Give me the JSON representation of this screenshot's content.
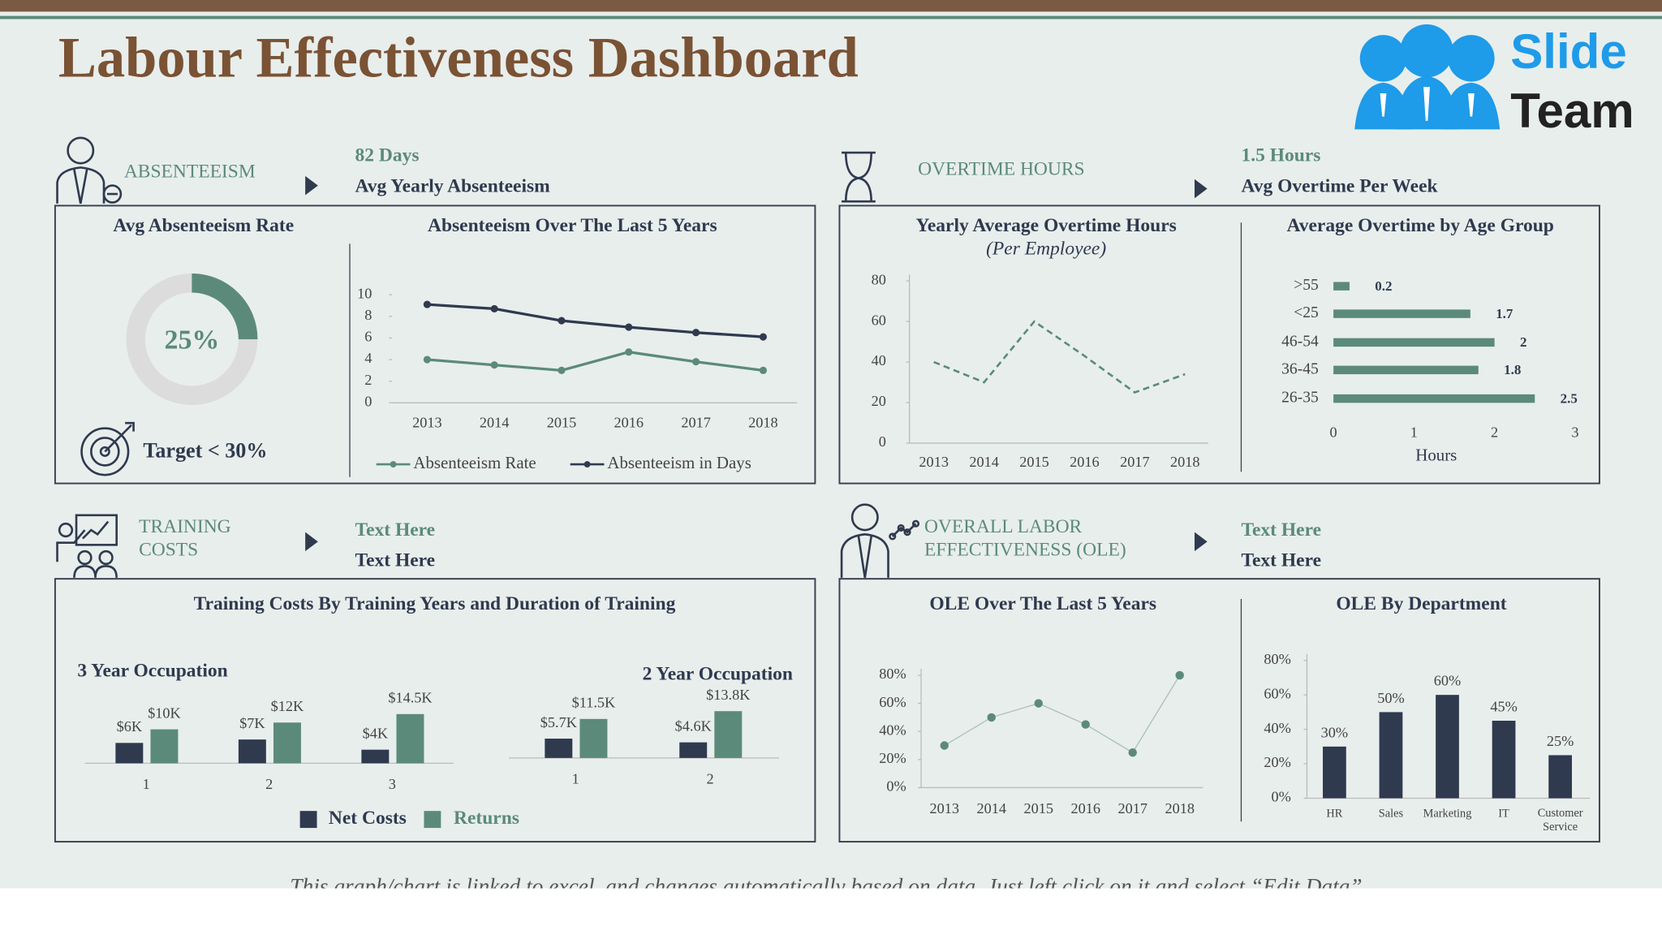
{
  "header": {
    "title": "Labour Effectiveness Dashboard",
    "logo": [
      "Slide",
      "Team"
    ]
  },
  "sections": [
    {
      "label": [
        "ABSENTEEISM"
      ],
      "kpi": "82 Days",
      "kpi_label": "Avg Yearly Absenteeism"
    },
    {
      "label": [
        "OVERTIME HOURS"
      ],
      "kpi": "1.5 Hours",
      "kpi_label": "Avg Overtime Per Week"
    },
    {
      "label": [
        "TRAINING",
        "COSTS"
      ],
      "kpi": "Text Here",
      "kpi_label": "Text Here"
    },
    {
      "label": [
        "OVERALL LABOR",
        "EFFECTIVENESS (OLE)"
      ],
      "kpi": "Text Here",
      "kpi_label": "Text Here"
    }
  ],
  "chart_data": [
    {
      "type": "donut",
      "title": "Avg Absenteeism Rate",
      "value": 25,
      "value_label": "25%",
      "color": "#5b8a7b",
      "target": "Target < 30%"
    },
    {
      "type": "line",
      "title": "Absenteeism Over The Last 5 Years",
      "categories": [
        "2013",
        "2014",
        "2015",
        "2016",
        "2017",
        "2018"
      ],
      "ylim": [
        0,
        10
      ],
      "yticks": [
        0,
        2,
        4,
        6,
        8,
        10
      ],
      "markers": true,
      "line_width": 2.5,
      "legend": "bottom",
      "series": [
        {
          "name": "Absenteeism Rate",
          "color": "#5b8a7b",
          "values": [
            4,
            3.5,
            3,
            4.7,
            3.8,
            3
          ]
        },
        {
          "name": "Absenteeism in Days",
          "color": "#2f3a4f",
          "values": [
            9.1,
            8.7,
            7.6,
            7,
            6.5,
            6.1
          ]
        }
      ]
    },
    {
      "type": "line",
      "title": "Yearly Average Overtime Hours",
      "subtitle": "(Per Employee)",
      "categories": [
        "2013",
        "2014",
        "2015",
        "2016",
        "2017",
        "2018"
      ],
      "ylim": [
        0,
        80
      ],
      "yticks": [
        0,
        20,
        40,
        60,
        80
      ],
      "dashed": true,
      "line_width": 2,
      "series": [
        {
          "color": "#5b8a7b",
          "values": [
            40,
            30,
            60,
            43,
            25,
            34
          ]
        }
      ]
    },
    {
      "type": "hbar",
      "title": "Average Overtime by Age Group",
      "categories": [
        ">55",
        "<25",
        "46-54",
        "36-45",
        "26-35"
      ],
      "values": [
        0.2,
        1.7,
        2,
        1.8,
        2.5
      ],
      "color": "#5b8a7b",
      "xlim": [
        0,
        3
      ],
      "xticks": [
        0,
        1,
        2,
        3
      ],
      "xlabel": "Hours"
    },
    {
      "type": "grouped_bar",
      "title": "Training Costs By Training Years and Duration of Training",
      "legend": [
        {
          "name": "Net Costs",
          "color": "#2f3a4f"
        },
        {
          "name": "Returns",
          "color": "#5b8a7b"
        }
      ],
      "groups": [
        {
          "title": "3 Year Occupation",
          "categories": [
            "1",
            "2",
            "3"
          ],
          "series": [
            {
              "values": [
                6,
                7,
                4
              ],
              "value_labels": [
                "$6K",
                "$7K",
                "$4K"
              ]
            },
            {
              "values": [
                10,
                12,
                14.5
              ],
              "value_labels": [
                "$10K",
                "$12K",
                "$14.5K"
              ]
            }
          ]
        },
        {
          "title": "2 Year Occupation",
          "categories": [
            "1",
            "2"
          ],
          "series": [
            {
              "values": [
                5.7,
                4.6
              ],
              "value_labels": [
                "$5.7K",
                "$4.6K"
              ]
            },
            {
              "values": [
                11.5,
                13.8
              ],
              "value_labels": [
                "$11.5K",
                "$13.8K"
              ]
            }
          ]
        }
      ]
    },
    {
      "type": "line",
      "title": "OLE Over The Last 5 Years",
      "categories": [
        "2013",
        "2014",
        "2015",
        "2016",
        "2017",
        "2018"
      ],
      "ylim": [
        0,
        80
      ],
      "yticks": [
        {
          "value": 0,
          "label": "0%"
        },
        {
          "value": 20,
          "label": "20%"
        },
        {
          "value": 40,
          "label": "40%"
        },
        {
          "value": 60,
          "label": "60%"
        },
        {
          "value": 80,
          "label": "80%"
        }
      ],
      "markers": true,
      "line_width": 1,
      "series": [
        {
          "color": "#5b8a7b",
          "values": [
            30,
            50,
            60,
            45,
            25,
            80
          ]
        }
      ]
    },
    {
      "type": "bar",
      "title": "OLE By Department",
      "categories": [
        "HR",
        "Sales",
        "Marketing",
        "IT",
        "Customer Service"
      ],
      "values": [
        30,
        50,
        60,
        45,
        25
      ],
      "value_labels": [
        "30%",
        "50%",
        "60%",
        "45%",
        "25%"
      ],
      "color": "#2f3a4f",
      "ylim": [
        0,
        80
      ],
      "yticks": [
        {
          "value": 0,
          "label": "0%"
        },
        {
          "value": 20,
          "label": "20%"
        },
        {
          "value": 40,
          "label": "40%"
        },
        {
          "value": 60,
          "label": "60%"
        },
        {
          "value": 80,
          "label": "80%"
        }
      ]
    }
  ],
  "footer": "This graph/chart is linked to excel, and changes automatically based on data. Just left click on it and select “Edit Data”."
}
